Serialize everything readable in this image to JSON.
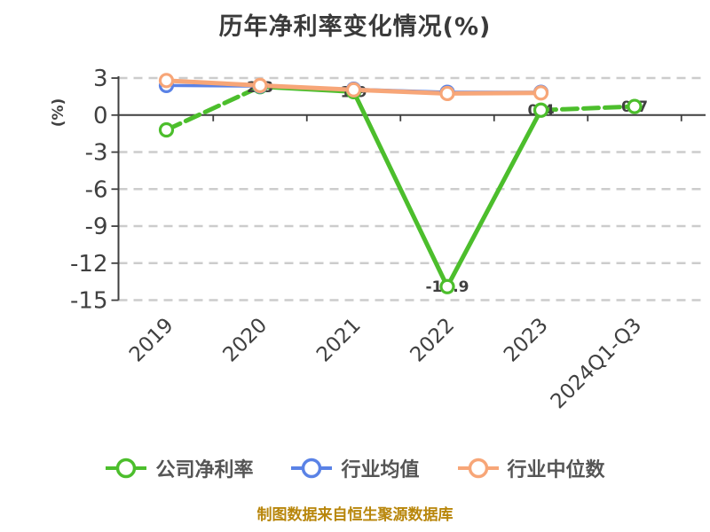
{
  "caption": "制图数据来自恒生聚源数据库",
  "caption_color": "#B8860B",
  "chart_data": {
    "type": "line",
    "title": "历年净利率变化情况(%)",
    "categories": [
      "2019",
      "2020",
      "2021",
      "2022",
      "2023",
      "2024Q1-Q3"
    ],
    "series": [
      {
        "key": "company-net-margin",
        "name": "公司净利率",
        "color": "#4CBE2C",
        "values": [
          -1.2,
          2.3,
          1.9,
          -13.9,
          0.4,
          0.7
        ],
        "point_labels": [
          "",
          "2.3",
          "1.9",
          "-13.9",
          "0.4",
          "0.7"
        ],
        "dashed_segments": [
          0,
          4
        ]
      },
      {
        "key": "industry-average",
        "name": "行业均值",
        "color": "#5A82E6",
        "values": [
          2.4,
          2.35,
          2.1,
          1.85,
          1.85,
          null
        ],
        "point_labels": [
          "",
          "",
          "",
          "",
          "",
          ""
        ],
        "dashed_segments": []
      },
      {
        "key": "industry-median",
        "name": "行业中位数",
        "color": "#F7A678",
        "values": [
          2.8,
          2.4,
          2.05,
          1.75,
          1.8,
          null
        ],
        "point_labels": [
          "",
          "",
          "",
          "",
          "",
          ""
        ],
        "dashed_segments": []
      }
    ],
    "xlabel": "",
    "ylabel": "(%)",
    "ylabel_color": "#FF0000",
    "yticks": [
      3,
      0,
      -3,
      -6,
      -9,
      -12,
      -15
    ],
    "ylim": [
      -15,
      3
    ],
    "grid": "dashed-horizontal",
    "legend_position": "bottom",
    "marker": "circle-white-fill"
  }
}
